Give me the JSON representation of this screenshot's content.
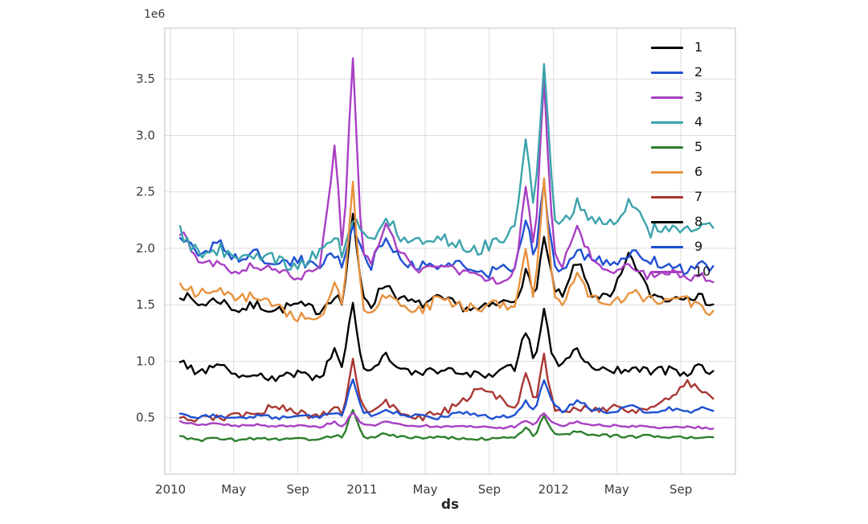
{
  "figure": {
    "background": "#ffffff"
  },
  "chart_data": {
    "type": "line",
    "title": "",
    "xlabel": "ds",
    "ylabel": "",
    "offset_text": "1e6",
    "y_unit_multiplier": 1000000,
    "xlim": [
      2009.97,
      2012.95
    ],
    "ylim": [
      0.0,
      3.95
    ],
    "grid": true,
    "grid_color": "#dcdcdc",
    "spine_color": "#cccccc",
    "tick_color": "#3b3b3b",
    "legend": {
      "position": "upper-right",
      "frame": false,
      "labels": [
        "1",
        "2",
        "3",
        "4",
        "5",
        "6",
        "7",
        "8",
        "9",
        "10"
      ]
    },
    "noise_seed": 7,
    "sample_step_years": 0.0192,
    "line_width": 2.4,
    "x_ticks": [
      {
        "value": 2010.0,
        "label": "2010"
      },
      {
        "value": 2010.33,
        "label": "May"
      },
      {
        "value": 2010.665,
        "label": "Sep"
      },
      {
        "value": 2011.0,
        "label": "2011"
      },
      {
        "value": 2011.33,
        "label": "May"
      },
      {
        "value": 2011.665,
        "label": "Sep"
      },
      {
        "value": 2012.0,
        "label": "2012"
      },
      {
        "value": 2012.33,
        "label": "May"
      },
      {
        "value": 2012.665,
        "label": "Sep"
      }
    ],
    "y_ticks": [
      {
        "value": 0.5,
        "label": "0.5"
      },
      {
        "value": 1.0,
        "label": "1.0"
      },
      {
        "value": 1.5,
        "label": "1.5"
      },
      {
        "value": 2.0,
        "label": "2.0"
      },
      {
        "value": 2.5,
        "label": "2.5"
      },
      {
        "value": 3.0,
        "label": "3.0"
      },
      {
        "value": 3.5,
        "label": "3.5"
      }
    ],
    "x": [
      2010.05,
      2010.15,
      2010.25,
      2010.35,
      2010.45,
      2010.55,
      2010.65,
      2010.78,
      2010.86,
      2010.9,
      2010.95,
      2011.0,
      2011.05,
      2011.12,
      2011.2,
      2011.3,
      2011.4,
      2011.5,
      2011.6,
      2011.7,
      2011.8,
      2011.86,
      2011.9,
      2011.95,
      2012.0,
      2012.05,
      2012.12,
      2012.2,
      2012.3,
      2012.4,
      2012.5,
      2012.6,
      2012.7,
      2012.78,
      2012.85
    ],
    "series": [
      {
        "name": "1",
        "color": "#000000",
        "noise": 0.045,
        "values": [
          1.6,
          1.5,
          1.55,
          1.45,
          1.5,
          1.45,
          1.5,
          1.45,
          1.6,
          1.5,
          2.3,
          1.6,
          1.5,
          1.7,
          1.55,
          1.5,
          1.55,
          1.5,
          1.45,
          1.5,
          1.55,
          1.8,
          1.55,
          2.1,
          1.65,
          1.55,
          1.9,
          1.6,
          1.55,
          1.95,
          1.6,
          1.55,
          1.6,
          1.55,
          1.5
        ]
      },
      {
        "name": "2",
        "color": "#1e50d2",
        "noise": 0.05,
        "values": [
          2.1,
          1.95,
          2.05,
          1.9,
          1.95,
          1.85,
          1.9,
          1.85,
          1.95,
          1.85,
          2.25,
          1.95,
          1.85,
          2.1,
          1.9,
          1.85,
          1.8,
          1.9,
          1.75,
          1.8,
          1.85,
          2.3,
          1.9,
          2.55,
          1.9,
          1.8,
          2.0,
          1.9,
          1.85,
          1.95,
          1.9,
          1.85,
          1.8,
          1.85,
          1.8
        ]
      },
      {
        "name": "3",
        "color": "#a93fc3",
        "noise": 0.04,
        "values": [
          2.15,
          1.9,
          1.85,
          1.8,
          1.85,
          1.8,
          1.75,
          1.8,
          2.95,
          1.85,
          3.75,
          1.95,
          1.85,
          2.2,
          1.95,
          1.8,
          1.85,
          1.8,
          1.75,
          1.7,
          1.8,
          2.6,
          1.9,
          3.5,
          1.95,
          1.85,
          2.2,
          1.9,
          1.8,
          1.85,
          1.75,
          1.8,
          1.7,
          1.75,
          1.7
        ]
      },
      {
        "name": "4",
        "color": "#3ba3ad",
        "noise": 0.06,
        "values": [
          2.15,
          1.95,
          2.0,
          1.9,
          1.95,
          1.9,
          1.85,
          1.95,
          2.1,
          1.95,
          2.3,
          2.1,
          2.05,
          2.3,
          2.1,
          2.05,
          2.1,
          2.05,
          2.0,
          2.05,
          2.15,
          3.0,
          2.3,
          3.68,
          2.3,
          2.2,
          2.4,
          2.25,
          2.2,
          2.45,
          2.15,
          2.2,
          2.15,
          2.2,
          2.15
        ]
      },
      {
        "name": "5",
        "color": "#2d7f2d",
        "noise": 0.012,
        "values": [
          0.33,
          0.3,
          0.32,
          0.3,
          0.32,
          0.31,
          0.32,
          0.3,
          0.35,
          0.31,
          0.58,
          0.34,
          0.32,
          0.36,
          0.33,
          0.32,
          0.33,
          0.32,
          0.31,
          0.32,
          0.33,
          0.42,
          0.33,
          0.52,
          0.36,
          0.34,
          0.38,
          0.35,
          0.34,
          0.33,
          0.34,
          0.33,
          0.32,
          0.33,
          0.32
        ]
      },
      {
        "name": "6",
        "color": "#e8923e",
        "noise": 0.05,
        "values": [
          1.65,
          1.6,
          1.65,
          1.55,
          1.6,
          1.5,
          1.4,
          1.35,
          1.75,
          1.45,
          2.6,
          1.5,
          1.45,
          1.6,
          1.5,
          1.45,
          1.55,
          1.5,
          1.45,
          1.5,
          1.45,
          2.0,
          1.5,
          2.65,
          1.55,
          1.5,
          1.75,
          1.55,
          1.5,
          1.6,
          1.55,
          1.5,
          1.55,
          1.45,
          1.45
        ]
      },
      {
        "name": "7",
        "color": "#a93732",
        "noise": 0.035,
        "values": [
          0.52,
          0.48,
          0.5,
          0.52,
          0.55,
          0.6,
          0.55,
          0.5,
          0.6,
          0.5,
          1.05,
          0.6,
          0.55,
          0.65,
          0.55,
          0.5,
          0.55,
          0.6,
          0.75,
          0.7,
          0.55,
          0.9,
          0.6,
          1.05,
          0.6,
          0.55,
          0.6,
          0.55,
          0.6,
          0.55,
          0.6,
          0.65,
          0.8,
          0.75,
          0.65
        ]
      },
      {
        "name": "8",
        "color": "#000000",
        "noise": 0.04,
        "values": [
          1.0,
          0.9,
          0.95,
          0.88,
          0.9,
          0.85,
          0.9,
          0.85,
          1.1,
          0.9,
          1.55,
          0.95,
          0.9,
          1.05,
          0.95,
          0.9,
          0.92,
          0.9,
          0.88,
          0.9,
          0.95,
          1.3,
          0.95,
          1.5,
          1.0,
          0.95,
          1.1,
          0.95,
          0.9,
          0.95,
          0.9,
          0.92,
          0.9,
          0.95,
          0.9
        ]
      },
      {
        "name": "9",
        "color": "#1e50d2",
        "noise": 0.018,
        "values": [
          0.55,
          0.5,
          0.52,
          0.5,
          0.52,
          0.5,
          0.52,
          0.5,
          0.55,
          0.5,
          0.85,
          0.55,
          0.52,
          0.58,
          0.53,
          0.52,
          0.5,
          0.55,
          0.52,
          0.5,
          0.53,
          0.65,
          0.55,
          0.85,
          0.6,
          0.55,
          0.65,
          0.58,
          0.55,
          0.6,
          0.55,
          0.58,
          0.55,
          0.58,
          0.55
        ]
      },
      {
        "name": "10",
        "color": "#a93fc3",
        "noise": 0.01,
        "values": [
          0.46,
          0.44,
          0.45,
          0.43,
          0.44,
          0.42,
          0.43,
          0.42,
          0.46,
          0.42,
          0.55,
          0.45,
          0.43,
          0.46,
          0.44,
          0.43,
          0.42,
          0.43,
          0.42,
          0.41,
          0.42,
          0.48,
          0.43,
          0.55,
          0.45,
          0.43,
          0.46,
          0.44,
          0.43,
          0.42,
          0.42,
          0.41,
          0.42,
          0.41,
          0.41
        ]
      }
    ]
  }
}
